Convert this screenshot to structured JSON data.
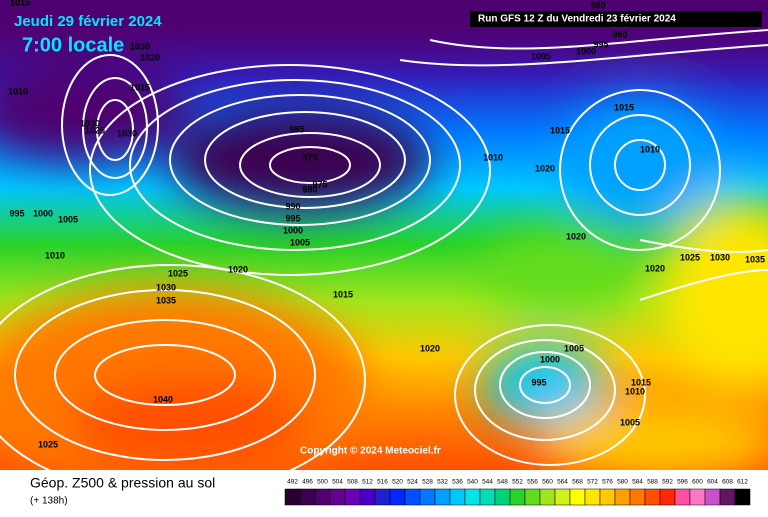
{
  "header": {
    "date": "Jeudi 29 février 2024",
    "time": "7:00 locale",
    "run": "Run GFS 12 Z du Vendredi 23 février 2024"
  },
  "map": {
    "isobar_labels": [
      1015,
      1030,
      1020,
      1010,
      1015,
      1030,
      1025,
      1030,
      985,
      970,
      975,
      980,
      990,
      995,
      1000,
      1005,
      995,
      1000,
      1005,
      1010,
      1025,
      1030,
      1035,
      1020,
      1015,
      1020,
      1040,
      1025,
      980,
      990,
      995,
      1000,
      1005,
      1015,
      1015,
      1010,
      1010,
      1020,
      1020,
      1020,
      1025,
      1030,
      1035,
      1005,
      1000,
      995,
      1015,
      1010,
      1005
    ],
    "copyright": "Copyright © 2024 Meteociel.fr"
  },
  "footer": {
    "title": "Géop. Z500 & pression au sol",
    "lead": "(+ 138h)"
  },
  "legend": {
    "values": [
      492,
      496,
      500,
      504,
      508,
      512,
      516,
      520,
      524,
      528,
      532,
      536,
      540,
      544,
      548,
      552,
      556,
      560,
      564,
      568,
      572,
      576,
      580,
      584,
      588,
      592,
      596,
      600,
      604,
      608,
      612
    ],
    "colors": [
      "#280032",
      "#3c0050",
      "#50006e",
      "#640090",
      "#6e00b4",
      "#4800c8",
      "#2020d0",
      "#0028ff",
      "#0050ff",
      "#0078ff",
      "#00a0ff",
      "#00c8ff",
      "#00e6e6",
      "#00dcb4",
      "#00d278",
      "#28d228",
      "#64dc1e",
      "#a0e61e",
      "#d2f01e",
      "#ffff00",
      "#ffe600",
      "#ffc800",
      "#ffa000",
      "#ff7800",
      "#ff5000",
      "#ff2800",
      "#ff50a0",
      "#ff78c8",
      "#c850c8",
      "#641464",
      "#000000"
    ]
  }
}
